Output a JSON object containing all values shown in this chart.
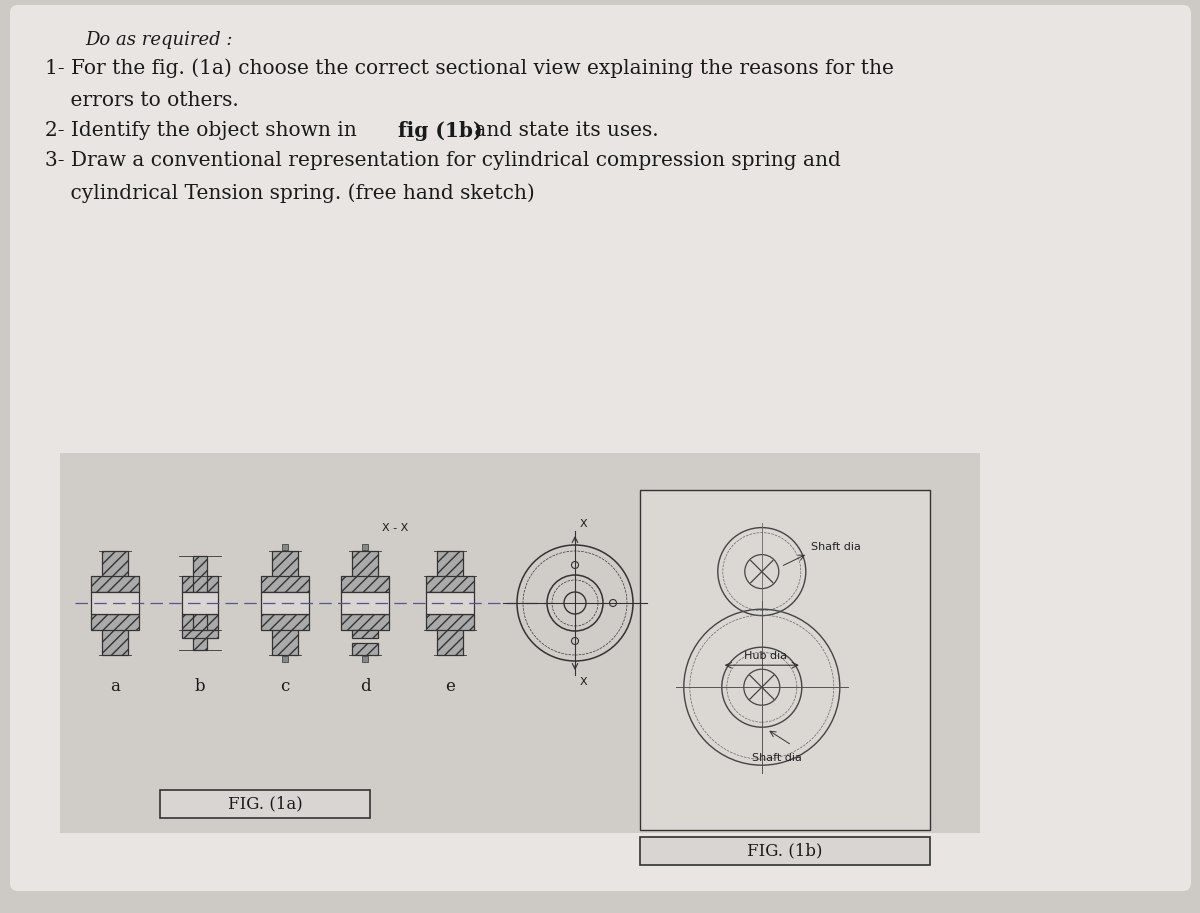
{
  "bg_color": "#cdc9c5",
  "paper_bg": "#e8e5e2",
  "fig_bg": "#d0ccc8",
  "fig1b_bg": "#dbd8d4",
  "text_color": "#1a1a1a",
  "title_text": "Do as required :",
  "q1_line1": "1- For the fig. (1a) choose the correct sectional view explaining the reasons for the",
  "q1_line2": "    errors to others.",
  "q2_pre": "2- Identify the object shown in ",
  "q2_bold": "fig (1b)",
  "q2_post": " and state its uses.",
  "q3_line1": "3- Draw a conventional representation for cylindrical compression spring and",
  "q3_line2": "    cylindrical Tension spring. (free hand sketch)",
  "fig1a_label": "FIG. (1a)",
  "fig1b_label": "FIG. (1b)",
  "labels_1a": [
    "a",
    "b",
    "c",
    "d",
    "e"
  ],
  "xx_label": "X - X",
  "x_top": "X",
  "x_bot": "X",
  "shaft_dia_label": "Shaft dia",
  "hub_dia_label": "Hub dia",
  "shaft_dia_label2": "Shaft dia",
  "hatch_color": "#888888",
  "line_color": "#333333",
  "centerline_color": "#555588"
}
